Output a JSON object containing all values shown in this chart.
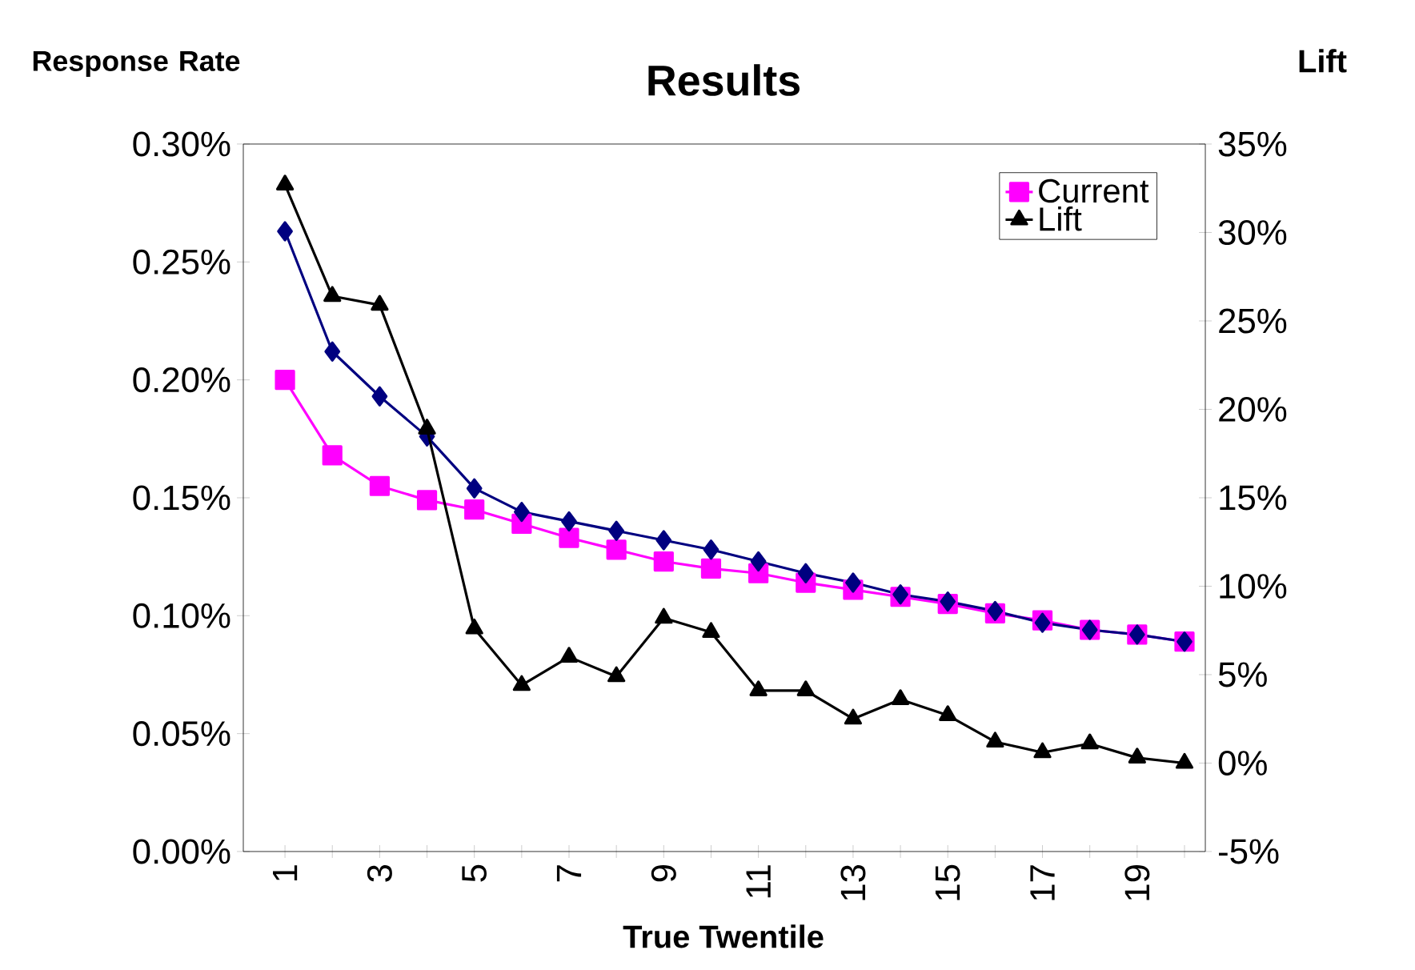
{
  "chart_data": {
    "type": "line",
    "title": "Results",
    "xlabel": "True Twentile",
    "ylabel": "Response Rate",
    "y2label": "Lift",
    "categories": [
      "1",
      null,
      "3",
      null,
      "5",
      null,
      "7",
      null,
      "9",
      null,
      "11",
      null,
      "13",
      null,
      "15",
      null,
      "17",
      null,
      "19",
      null
    ],
    "series": [
      {
        "name": "Current",
        "color": "#ff00ff",
        "marker": "square",
        "values": [
          0.2,
          0.168,
          0.155,
          0.149,
          0.145,
          0.139,
          0.133,
          0.128,
          0.123,
          0.12,
          0.118,
          0.114,
          0.111,
          0.108,
          0.105,
          0.101,
          0.098,
          0.094,
          0.092,
          0.089
        ]
      },
      {
        "color": "#000080",
        "marker": "diamond",
        "values": [
          0.263,
          0.212,
          0.193,
          0.176,
          0.154,
          0.144,
          0.14,
          0.136,
          0.132,
          0.128,
          0.123,
          0.118,
          0.114,
          0.109,
          0.106,
          0.102,
          0.097,
          0.094,
          0.092,
          0.089
        ]
      },
      {
        "name": "Lift",
        "color": "#000000",
        "marker": "triangle",
        "axis": "y2",
        "values": [
          32.7,
          26.4,
          25.9,
          18.9,
          7.6,
          4.4,
          6.0,
          4.9,
          8.2,
          7.4,
          4.1,
          4.1,
          2.5,
          3.6,
          2.7,
          1.2,
          0.6,
          1.1,
          0.3,
          0.0
        ]
      }
    ],
    "ylim": [
      0,
      0.3
    ],
    "yticks": [
      {
        "value": 0,
        "label": "0.00%"
      },
      {
        "value": 0.05,
        "label": "0.05%"
      },
      {
        "value": 0.1,
        "label": "0.10%"
      },
      {
        "value": 0.15,
        "label": "0.15%"
      },
      {
        "value": 0.2,
        "label": "0.20%"
      },
      {
        "value": 0.25,
        "label": "0.25%"
      },
      {
        "value": 0.3,
        "label": "0.30%"
      }
    ],
    "y2lim": [
      -5,
      35
    ],
    "y2ticks": [
      {
        "value": -5,
        "label": "-5%"
      },
      {
        "value": 0,
        "label": "0%"
      },
      {
        "value": 5,
        "label": "5%"
      },
      {
        "value": 10,
        "label": "10%"
      },
      {
        "value": 15,
        "label": "15%"
      },
      {
        "value": 20,
        "label": "20%"
      },
      {
        "value": 25,
        "label": "25%"
      },
      {
        "value": 30,
        "label": "30%"
      },
      {
        "value": 35,
        "label": "35%"
      }
    ],
    "legend": "top right",
    "line_style": "solid"
  }
}
